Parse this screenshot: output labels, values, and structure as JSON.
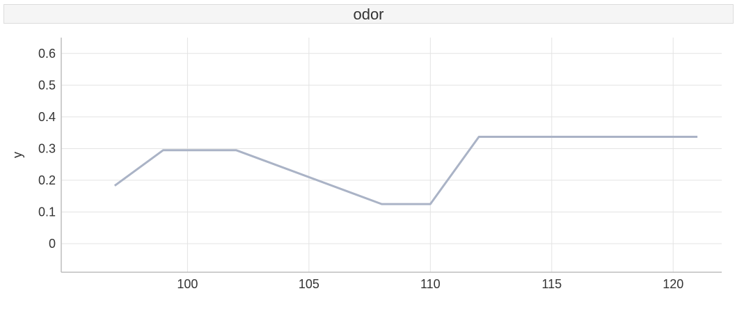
{
  "chart_data": {
    "type": "line",
    "title": "odor",
    "xlabel": "",
    "ylabel": "y",
    "xlim": [
      94.8,
      122
    ],
    "ylim": [
      -0.09,
      0.65
    ],
    "xticks": [
      100,
      105,
      110,
      115,
      120
    ],
    "yticks": [
      0,
      0.1,
      0.2,
      0.3,
      0.4,
      0.5,
      0.6
    ],
    "grid": true,
    "series": [
      {
        "color": "#aab3c6",
        "x": [
          97,
          99,
          102,
          108,
          110,
          112,
          121
        ],
        "y": [
          0.183,
          0.295,
          0.295,
          0.125,
          0.125,
          0.337,
          0.337
        ]
      }
    ]
  }
}
